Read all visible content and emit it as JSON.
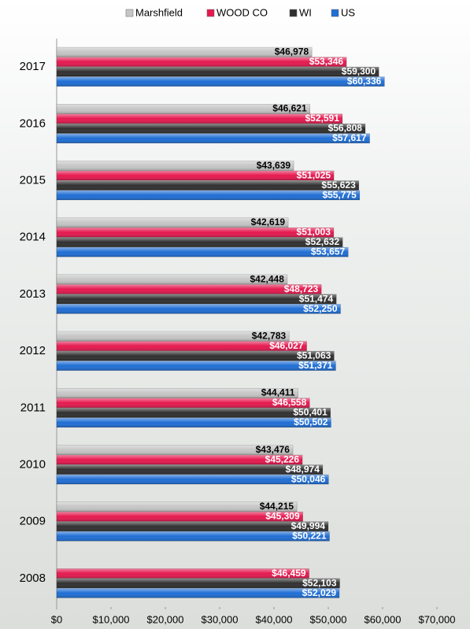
{
  "chart_data": {
    "type": "hbar",
    "categories": [
      "2017",
      "2016",
      "2015",
      "2014",
      "2013",
      "2012",
      "2011",
      "2010",
      "2009",
      "2008"
    ],
    "series": [
      {
        "name": "Marshfield",
        "color": "#c6c6c6",
        "label_color": "#000000",
        "values": [
          46978,
          46621,
          43639,
          42619,
          42448,
          42783,
          44411,
          43476,
          44215,
          null
        ],
        "value_labels": [
          "$46,978",
          "$46,621",
          "$43,639",
          "$42,619",
          "$42,448",
          "$42,783",
          "$44,411",
          "$43,476",
          "$44,215",
          null
        ]
      },
      {
        "name": "WOOD CO",
        "color": "#e5194f",
        "label_color": "#ffffff",
        "values": [
          53346,
          52591,
          51025,
          51003,
          48723,
          46027,
          46558,
          45226,
          45309,
          46459
        ],
        "value_labels": [
          "$53,346",
          "$52,591",
          "$51,025",
          "$51,003",
          "$48,723",
          "$46,027",
          "$46,558",
          "$45,226",
          "$45,309",
          "$46,459"
        ]
      },
      {
        "name": "WI",
        "color": "#303030",
        "label_color": "#ffffff",
        "values": [
          59300,
          56808,
          55623,
          52632,
          51474,
          51063,
          50401,
          48974,
          49994,
          52103
        ],
        "value_labels": [
          "$59,300",
          "$56,808",
          "$55,623",
          "$52,632",
          "$51,474",
          "$51,063",
          "$50,401",
          "$48,974",
          "$49,994",
          "$52,103"
        ]
      },
      {
        "name": "US",
        "color": "#1f6ed4",
        "label_color": "#ffffff",
        "values": [
          60336,
          57617,
          55775,
          53657,
          52250,
          51371,
          50502,
          50046,
          50221,
          52029
        ],
        "value_labels": [
          "$60,336",
          "$57,617",
          "$55,775",
          "$53,657",
          "$52,250",
          "$51,371",
          "$50,502",
          "$50,046",
          "$50,221",
          "$52,029"
        ]
      }
    ],
    "xlim": [
      0,
      70000
    ],
    "xticks": [
      {
        "value": 0,
        "label": "$0"
      },
      {
        "value": 10000,
        "label": "$10,000"
      },
      {
        "value": 20000,
        "label": "$20,000"
      },
      {
        "value": 30000,
        "label": "$30,000"
      },
      {
        "value": 40000,
        "label": "$40,000"
      },
      {
        "value": 50000,
        "label": "$50,000"
      },
      {
        "value": 60000,
        "label": "$60,000"
      },
      {
        "value": 70000,
        "label": "$70,000"
      }
    ],
    "legend": "top"
  }
}
